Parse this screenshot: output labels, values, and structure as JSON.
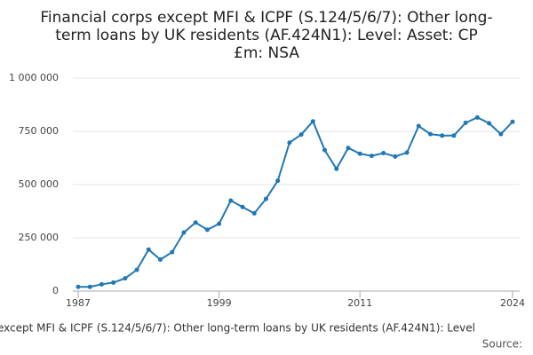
{
  "chart_data": {
    "type": "line",
    "title_lines": [
      "Financial corps except MFI & ICPF (S.124/5/6/7): Other long-",
      "term loans by UK residents (AF.424N1): Level: Asset: CP",
      "£m: NSA"
    ],
    "x": [
      1987,
      1988,
      1989,
      1990,
      1991,
      1992,
      1993,
      1994,
      1995,
      1996,
      1997,
      1998,
      1999,
      2000,
      2001,
      2002,
      2003,
      2004,
      2005,
      2006,
      2007,
      2008,
      2009,
      2010,
      2011,
      2012,
      2013,
      2014,
      2015,
      2016,
      2017,
      2018,
      2019,
      2020,
      2021,
      2022,
      2023,
      2024
    ],
    "series": [
      {
        "name": "except MFI & ICPF (S.124/5/6/7): Other long-term loans by UK residents (AF.424N1): Level",
        "color": "#1f78b4",
        "values": [
          20000,
          20000,
          32000,
          40000,
          60000,
          100000,
          195000,
          148000,
          183000,
          275000,
          322000,
          288000,
          316000,
          425000,
          395000,
          365000,
          433000,
          518000,
          697000,
          735000,
          797000,
          662000,
          574000,
          672000,
          645000,
          635000,
          648000,
          632000,
          650000,
          775000,
          737000,
          730000,
          730000,
          790000,
          815000,
          788000,
          737000,
          795000
        ]
      }
    ],
    "xlim": [
      1987,
      2024
    ],
    "xticks": [
      1987,
      1999,
      2011,
      2024
    ],
    "ylim": [
      0,
      1000000
    ],
    "yticks": [
      0,
      {
        "value": 250000,
        "label": "250 000"
      },
      {
        "value": 500000,
        "label": "500 000"
      },
      {
        "value": 750000,
        "label": "750 000"
      },
      {
        "value": 1000000,
        "label": "1 000 000"
      }
    ],
    "grid": true,
    "source": "Source:"
  }
}
